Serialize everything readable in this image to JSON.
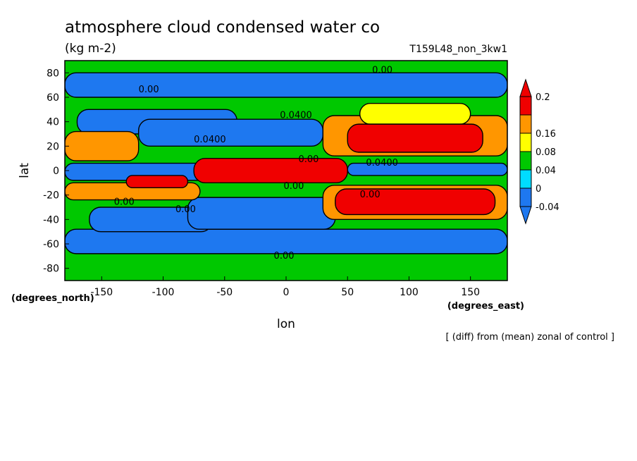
{
  "chart_data": {
    "type": "heatmap",
    "title": "atmosphere cloud condensed water co",
    "units": "(kg m-2)",
    "run_label": "T159L48_non_3kw1",
    "footnote": "[ (diff) from (mean) zonal of control ]",
    "xlabel": "lon",
    "ylabel": "lat",
    "x_units": "(degrees_east)",
    "y_units": "(degrees_north)",
    "xlim": [
      -180,
      180
    ],
    "ylim": [
      -90,
      90
    ],
    "x_ticks": [
      -150,
      -100,
      -50,
      0,
      50,
      100,
      150
    ],
    "y_ticks": [
      -80,
      -60,
      -40,
      -20,
      0,
      20,
      40,
      60,
      80
    ],
    "colorbar": {
      "levels": [
        -0.04,
        0,
        0.04,
        0.08,
        0.16,
        0.2
      ],
      "level_labels": [
        "-0.04",
        "0",
        "0.04",
        "0.08",
        "0.16",
        "0.2"
      ],
      "colors": [
        "#1e78f0",
        "#00dcff",
        "#00c800",
        "#ffff00",
        "#ff9600",
        "#f00000"
      ],
      "extend": "both"
    },
    "contour_labels": [
      "0.00",
      "0.00",
      "0.00",
      "0.0400",
      "0.0400",
      "0.00",
      "0.00",
      "0.0400",
      "0.00",
      "0.00",
      "0.00"
    ],
    "regions": [
      {
        "lon": [
          -180,
          180
        ],
        "lat": [
          -90,
          90
        ],
        "value": 0
      },
      {
        "lon": [
          -180,
          180
        ],
        "lat": [
          60,
          80
        ],
        "value": -0.04
      },
      {
        "lon": [
          -180,
          180
        ],
        "lat": [
          -68,
          -48
        ],
        "value": -0.04
      },
      {
        "lon": [
          -170,
          -40
        ],
        "lat": [
          30,
          50
        ],
        "value": -0.04
      },
      {
        "lon": [
          -160,
          -60
        ],
        "lat": [
          -50,
          -30
        ],
        "value": -0.04
      },
      {
        "lon": [
          -120,
          30
        ],
        "lat": [
          20,
          42
        ],
        "value": -0.04
      },
      {
        "lon": [
          -80,
          40
        ],
        "lat": [
          -48,
          -22
        ],
        "value": -0.04
      },
      {
        "lon": [
          -180,
          -60
        ],
        "lat": [
          -8,
          6
        ],
        "value": -0.04
      },
      {
        "lon": [
          50,
          180
        ],
        "lat": [
          -4,
          6
        ],
        "value": -0.04
      },
      {
        "lon": [
          30,
          180
        ],
        "lat": [
          12,
          45
        ],
        "value": 0.08
      },
      {
        "lon": [
          30,
          180
        ],
        "lat": [
          -40,
          -12
        ],
        "value": 0.08
      },
      {
        "lon": [
          -180,
          -70
        ],
        "lat": [
          -24,
          -10
        ],
        "value": 0.08
      },
      {
        "lon": [
          -180,
          -120
        ],
        "lat": [
          8,
          32
        ],
        "value": 0.08
      },
      {
        "lon": [
          60,
          150
        ],
        "lat": [
          38,
          55
        ],
        "value": 0.04
      },
      {
        "lon": [
          -75,
          50
        ],
        "lat": [
          -10,
          10
        ],
        "value": 0.2
      },
      {
        "lon": [
          -130,
          -80
        ],
        "lat": [
          -14,
          -4
        ],
        "value": 0.2
      },
      {
        "lon": [
          50,
          160
        ],
        "lat": [
          15,
          38
        ],
        "value": 0.2
      },
      {
        "lon": [
          40,
          170
        ],
        "lat": [
          -36,
          -15
        ],
        "value": 0.2
      }
    ]
  }
}
